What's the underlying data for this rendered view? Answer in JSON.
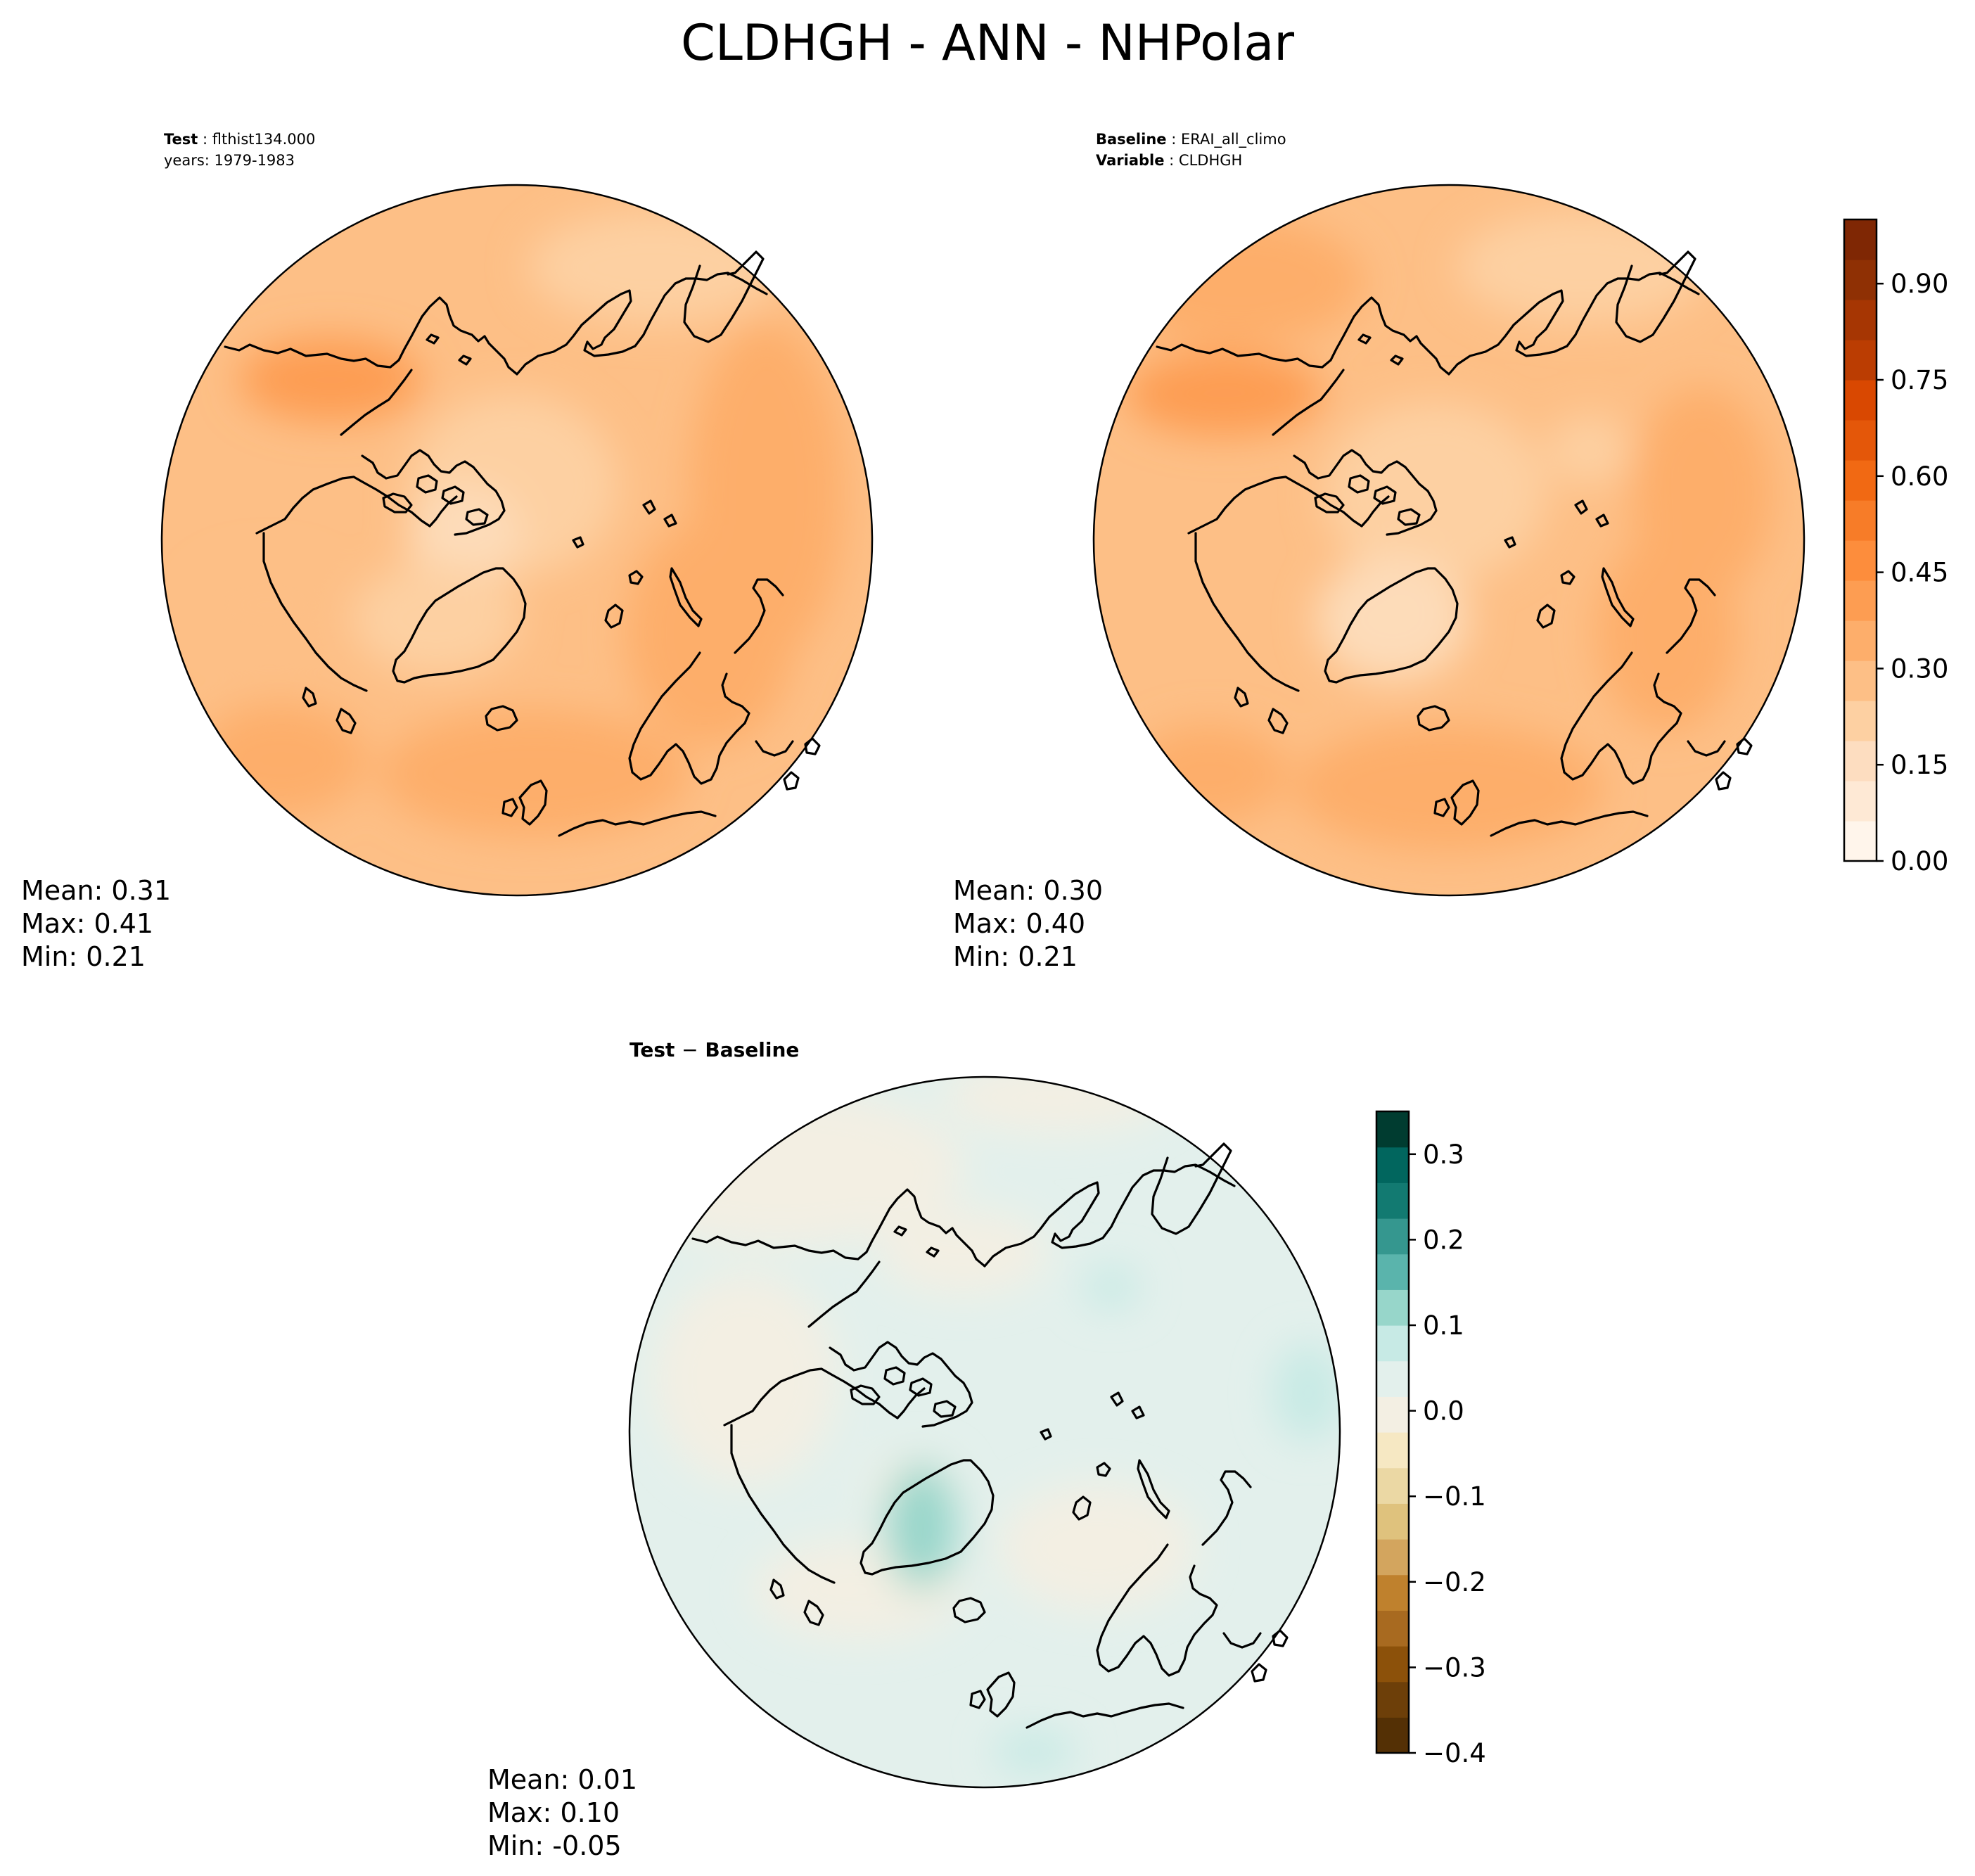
{
  "figure": {
    "title": "CLDHGH - ANN - NHPolar"
  },
  "panels": {
    "test": {
      "label_key": "Test",
      "label_value": "flthist134.000",
      "line2": "years: 1979-1983",
      "stats": {
        "mean": "Mean:  0.31",
        "max": "Max:  0.41",
        "min": "Min:  0.21"
      }
    },
    "baseline": {
      "label_key": "Baseline",
      "label_value": "ERAI_all_climo",
      "line2_key": "Variable",
      "line2_value": "CLDHGH",
      "stats": {
        "mean": "Mean:  0.30",
        "max": "Max:  0.40",
        "min": "Min:  0.21"
      }
    },
    "diff": {
      "title_key": "Test",
      "title_op": "−",
      "title_value": "Baseline",
      "stats": {
        "mean": "Mean:  0.01",
        "max": "Max:  0.10",
        "min": "Min: -0.05"
      }
    }
  },
  "colorbars": {
    "main": {
      "ticks": [
        "0.00",
        "0.15",
        "0.30",
        "0.45",
        "0.60",
        "0.75",
        "0.90"
      ],
      "tick_values": [
        0,
        0.15,
        0.3,
        0.45,
        0.6,
        0.75,
        0.9
      ],
      "range": [
        0,
        1.0
      ],
      "colors": [
        "#fff5eb",
        "#fee9d5",
        "#fdddc0",
        "#fdd0a2",
        "#fdbf86",
        "#fdae6b",
        "#fd9d52",
        "#fd8d3c",
        "#f77c28",
        "#f16913",
        "#e45709",
        "#d94801",
        "#bb3d02",
        "#a63603",
        "#8f3004",
        "#7f2704"
      ]
    },
    "diff": {
      "ticks": [
        "0.3",
        "0.2",
        "0.1",
        "0.0",
        "−0.1",
        "−0.2",
        "−0.3",
        "−0.4"
      ],
      "tick_values": [
        0.3,
        0.2,
        0.1,
        0.0,
        -0.1,
        -0.2,
        -0.3,
        -0.4
      ],
      "range": [
        -0.4,
        0.35
      ],
      "colors": [
        "#543005",
        "#6d3f09",
        "#8c510a",
        "#a86a20",
        "#bf812d",
        "#d3a55e",
        "#dfc27d",
        "#ebd8a4",
        "#f6e8c3",
        "#f3efe3",
        "#e3f0ec",
        "#c7eae5",
        "#97d6ca",
        "#5ab4ac",
        "#35978f",
        "#127a71",
        "#01665e",
        "#003c30"
      ]
    }
  },
  "chart_data": [
    {
      "type": "heatmap",
      "title": "Test: flthist134.000",
      "subtitle": "years: 1979-1983",
      "projection": "North polar stereographic",
      "mean": 0.31,
      "max": 0.41,
      "min": 0.21,
      "colorbar_range": [
        0,
        1.0
      ],
      "colorbar_ticks": [
        0.0,
        0.15,
        0.3,
        0.45,
        0.6,
        0.75,
        0.9
      ],
      "colormap": "Oranges"
    },
    {
      "type": "heatmap",
      "title": "Baseline: ERAI_all_climo",
      "subtitle": "Variable: CLDHGH",
      "projection": "North polar stereographic",
      "mean": 0.3,
      "max": 0.4,
      "min": 0.21,
      "colorbar_range": [
        0,
        1.0
      ],
      "colorbar_ticks": [
        0.0,
        0.15,
        0.3,
        0.45,
        0.6,
        0.75,
        0.9
      ],
      "colormap": "Oranges"
    },
    {
      "type": "heatmap",
      "title": "Test − Baseline",
      "projection": "North polar stereographic",
      "mean": 0.01,
      "max": 0.1,
      "min": -0.05,
      "colorbar_range": [
        -0.4,
        0.35
      ],
      "colorbar_ticks": [
        -0.4,
        -0.3,
        -0.2,
        -0.1,
        0.0,
        0.1,
        0.2,
        0.3
      ],
      "colormap": "BrBG"
    }
  ]
}
